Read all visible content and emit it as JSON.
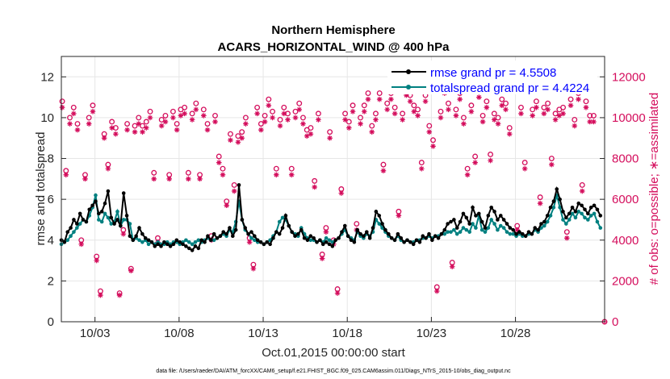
{
  "chart_data": {
    "type": "line",
    "title": "Northern Hemisphere",
    "subtitle": "ACARS_HORIZONTAL_WIND @ 400 hPa",
    "xlabel": "Oct.01,2015 00:00:00 start",
    "ylabel": "rmse and totalspread",
    "y2label": "# of obs: o=possible; ∗=assimilated",
    "footnote": "data file: /Users/raeder/DAI/ATM_forcXX/CAM6_setup/f.e21.FHIST_BGC.f09_025.CAM6assim.011/Diags_NTrS_2015-10/obs_diag_output.nc",
    "xlim": [
      1,
      33.3
    ],
    "ylim": [
      0,
      13
    ],
    "y2lim": [
      0,
      13000
    ],
    "x_ticks": [
      {
        "value": 3,
        "label": "10/03"
      },
      {
        "value": 8,
        "label": "10/08"
      },
      {
        "value": 13,
        "label": "10/13"
      },
      {
        "value": 18,
        "label": "10/18"
      },
      {
        "value": 23,
        "label": "10/23"
      },
      {
        "value": 28,
        "label": "10/28"
      }
    ],
    "y_ticks": [
      "0",
      "2",
      "4",
      "6",
      "8",
      "10",
      "12"
    ],
    "y2_ticks": [
      "0",
      "2000",
      "4000",
      "6000",
      "8000",
      "10000",
      "12000"
    ],
    "legend": [
      {
        "label": "rmse grand pr = 4.5508",
        "color": "#000000"
      },
      {
        "label": "totalspread grand pr = 4.4224",
        "color": "#008080"
      }
    ],
    "colors": {
      "rmse": "#000000",
      "spread": "#008080",
      "obs": "#d40d5c",
      "grid": "#e6e6e6"
    },
    "series": [
      {
        "name": "rmse",
        "values": [
          4.0,
          3.9,
          4.4,
          4.6,
          5.0,
          4.8,
          5.3,
          5.0,
          4.9,
          5.5,
          5.7,
          5.9,
          5.3,
          5.4,
          5.8,
          6.4,
          5.1,
          4.8,
          5.0,
          4.7,
          6.3,
          5.2,
          4.2,
          4.0,
          4.2,
          4.6,
          4.3,
          4.1,
          4.0,
          3.9,
          3.7,
          3.8,
          3.7,
          3.9,
          3.8,
          3.7,
          3.8,
          4.0,
          3.9,
          3.8,
          3.7,
          3.6,
          3.5,
          3.7,
          3.6,
          4.0,
          3.9,
          4.2,
          4.0,
          4.3,
          4.1,
          4.2,
          4.4,
          4.3,
          4.6,
          4.2,
          4.5,
          6.7,
          5.0,
          4.6,
          4.3,
          4.4,
          4.2,
          4.0,
          3.9,
          3.8,
          3.9,
          3.8,
          4.1,
          4.4,
          4.3,
          4.6,
          5.2,
          4.7,
          4.4,
          4.2,
          4.3,
          4.5,
          4.1,
          4.0,
          4.2,
          4.1,
          3.9,
          4.0,
          3.8,
          3.9,
          3.8,
          3.7,
          4.0,
          4.1,
          4.4,
          4.7,
          4.2,
          4.0,
          3.9,
          4.5,
          4.3,
          4.2,
          4.4,
          4.1,
          4.6,
          5.4,
          5.2,
          4.8,
          4.5,
          4.3,
          4.1,
          4.0,
          4.3,
          4.1,
          3.9,
          4.0,
          3.9,
          3.8,
          4.0,
          3.9,
          4.2,
          4.1,
          4.3,
          4.0,
          4.2,
          4.1,
          4.3,
          4.5,
          4.8,
          4.9,
          5.0,
          4.6,
          4.9,
          5.3,
          5.1,
          4.8,
          5.6,
          5.2,
          5.3,
          4.9,
          4.6,
          5.2,
          5.6,
          5.4,
          5.0,
          5.2,
          5.0,
          4.8,
          4.6,
          4.5,
          4.3,
          4.4,
          4.3,
          4.2,
          4.4,
          4.3,
          4.6,
          4.5,
          4.8,
          4.9,
          5.2,
          5.6,
          5.9,
          6.5,
          6.0,
          5.4,
          5.1,
          5.3,
          5.6,
          5.4,
          5.8,
          5.7,
          5.5,
          5.3,
          5.6,
          5.7,
          5.5,
          5.2
        ]
      },
      {
        "name": "totalspread",
        "values": [
          3.8,
          3.9,
          4.0,
          4.2,
          4.4,
          4.6,
          4.8,
          5.0,
          4.9,
          5.2,
          5.6,
          6.2,
          5.0,
          4.9,
          5.3,
          5.1,
          4.8,
          4.9,
          5.4,
          4.7,
          5.0,
          5.0,
          4.8,
          4.0,
          4.1,
          4.0,
          3.9,
          4.0,
          3.8,
          3.9,
          3.8,
          3.9,
          3.8,
          3.8,
          3.9,
          3.8,
          3.9,
          3.9,
          3.8,
          3.9,
          4.0,
          3.9,
          3.8,
          3.9,
          4.0,
          3.9,
          4.0,
          4.1,
          4.0,
          4.0,
          4.1,
          4.2,
          4.3,
          4.2,
          4.5,
          4.4,
          4.9,
          5.9,
          5.0,
          4.5,
          4.3,
          4.1,
          4.0,
          3.9,
          3.9,
          3.8,
          3.9,
          4.0,
          4.2,
          4.4,
          4.9,
          5.1,
          5.0,
          4.7,
          4.4,
          4.3,
          4.2,
          4.6,
          4.3,
          4.1,
          4.0,
          4.0,
          3.9,
          4.0,
          3.9,
          4.1,
          4.0,
          3.9,
          4.0,
          4.1,
          4.3,
          4.5,
          4.2,
          4.1,
          4.0,
          4.4,
          4.2,
          4.1,
          4.3,
          4.2,
          4.4,
          5.0,
          4.8,
          4.6,
          4.4,
          4.2,
          4.1,
          4.0,
          4.2,
          4.0,
          3.9,
          4.0,
          3.9,
          3.9,
          4.0,
          4.0,
          4.1,
          4.1,
          4.2,
          4.1,
          4.2,
          4.2,
          4.3,
          4.3,
          4.4,
          4.4,
          4.5,
          4.3,
          4.4,
          4.6,
          4.5,
          4.4,
          4.8,
          4.6,
          5.2,
          4.5,
          4.4,
          4.6,
          5.0,
          4.8,
          4.5,
          4.7,
          4.6,
          4.4,
          4.3,
          4.3,
          4.2,
          4.3,
          4.2,
          4.2,
          4.3,
          4.3,
          4.5,
          4.4,
          4.6,
          4.7,
          4.9,
          5.2,
          5.6,
          6.2,
          5.6,
          5.0,
          4.8,
          5.0,
          5.3,
          5.1,
          5.4,
          5.3,
          5.1,
          5.0,
          5.2,
          5.3,
          4.9,
          4.6
        ]
      },
      {
        "name": "obs_possible",
        "values": [
          10800,
          7400,
          10000,
          10500,
          9700,
          4000,
          7200,
          10000,
          10600,
          3200,
          1500,
          9200,
          7700,
          9800,
          9500,
          1400,
          4500,
          9700,
          2600,
          9600,
          10000,
          9600,
          9800,
          10300,
          7300,
          4100,
          9900,
          10100,
          7200,
          10300,
          9700,
          10400,
          10500,
          7300,
          10200,
          10700,
          7200,
          10400,
          9700,
          4200,
          10100,
          8100,
          7500,
          5900,
          9200,
          6700,
          9100,
          9300,
          10000,
          4100,
          2800,
          10500,
          9700,
          10100,
          10900,
          10300,
          7500,
          9900,
          10500,
          10200,
          7500,
          10300,
          10700,
          10000,
          9400,
          9500,
          6900,
          10200,
          3300,
          4600,
          9300,
          4000,
          1600,
          6500,
          10200,
          9800,
          10600,
          4800,
          10000,
          10600,
          11200,
          9600,
          10200,
          11200,
          7700,
          10700,
          11200,
          10500,
          5400,
          10200,
          11400,
          11100,
          10600,
          10400,
          7800,
          11100,
          9600,
          8900,
          1700,
          10300,
          11500,
          10700,
          2900,
          10400,
          11200,
          10000,
          7500,
          10600,
          8100,
          11300,
          10100,
          10800,
          8200,
          10200,
          10000,
          10900,
          10700,
          9500,
          11700,
          4700,
          10500,
          7800,
          11600,
          10400,
          10800,
          6100,
          10500,
          10700,
          8000,
          10200,
          10400,
          10500,
          4400,
          10900,
          9900,
          11200,
          6700,
          10800,
          10100,
          10100
        ]
      },
      {
        "name": "obs_assimilated",
        "values": [
          10500,
          7200,
          9700,
          10200,
          9400,
          3800,
          7000,
          9700,
          10300,
          3000,
          1300,
          9000,
          7500,
          9500,
          9200,
          1300,
          4300,
          9400,
          2500,
          9300,
          9700,
          9300,
          9500,
          10000,
          7000,
          3900,
          9600,
          9800,
          7000,
          10000,
          9400,
          10100,
          10200,
          7000,
          9900,
          10400,
          7000,
          10100,
          9400,
          4000,
          9800,
          7800,
          7200,
          5700,
          8900,
          6400,
          8800,
          9000,
          9700,
          3900,
          2600,
          10200,
          9400,
          9800,
          10600,
          10000,
          7200,
          9600,
          10200,
          9900,
          7200,
          10000,
          10400,
          9700,
          9100,
          9200,
          6600,
          9900,
          3100,
          4400,
          9000,
          3800,
          1400,
          6300,
          9900,
          9500,
          10300,
          4500,
          9700,
          10300,
          10900,
          9300,
          9900,
          10900,
          7400,
          10400,
          10900,
          10200,
          5200,
          9900,
          11100,
          10800,
          10300,
          10100,
          7500,
          10800,
          9300,
          8600,
          1500,
          10000,
          11200,
          10400,
          2700,
          10100,
          10900,
          9700,
          7200,
          10300,
          7800,
          11000,
          9800,
          10500,
          7900,
          9900,
          9700,
          10600,
          10400,
          9200,
          11400,
          4500,
          10200,
          7500,
          11300,
          10100,
          10500,
          5800,
          10200,
          10400,
          7700,
          9900,
          10100,
          10200,
          4100,
          10600,
          9600,
          10900,
          6400,
          10500,
          9800,
          9800
        ]
      }
    ]
  }
}
